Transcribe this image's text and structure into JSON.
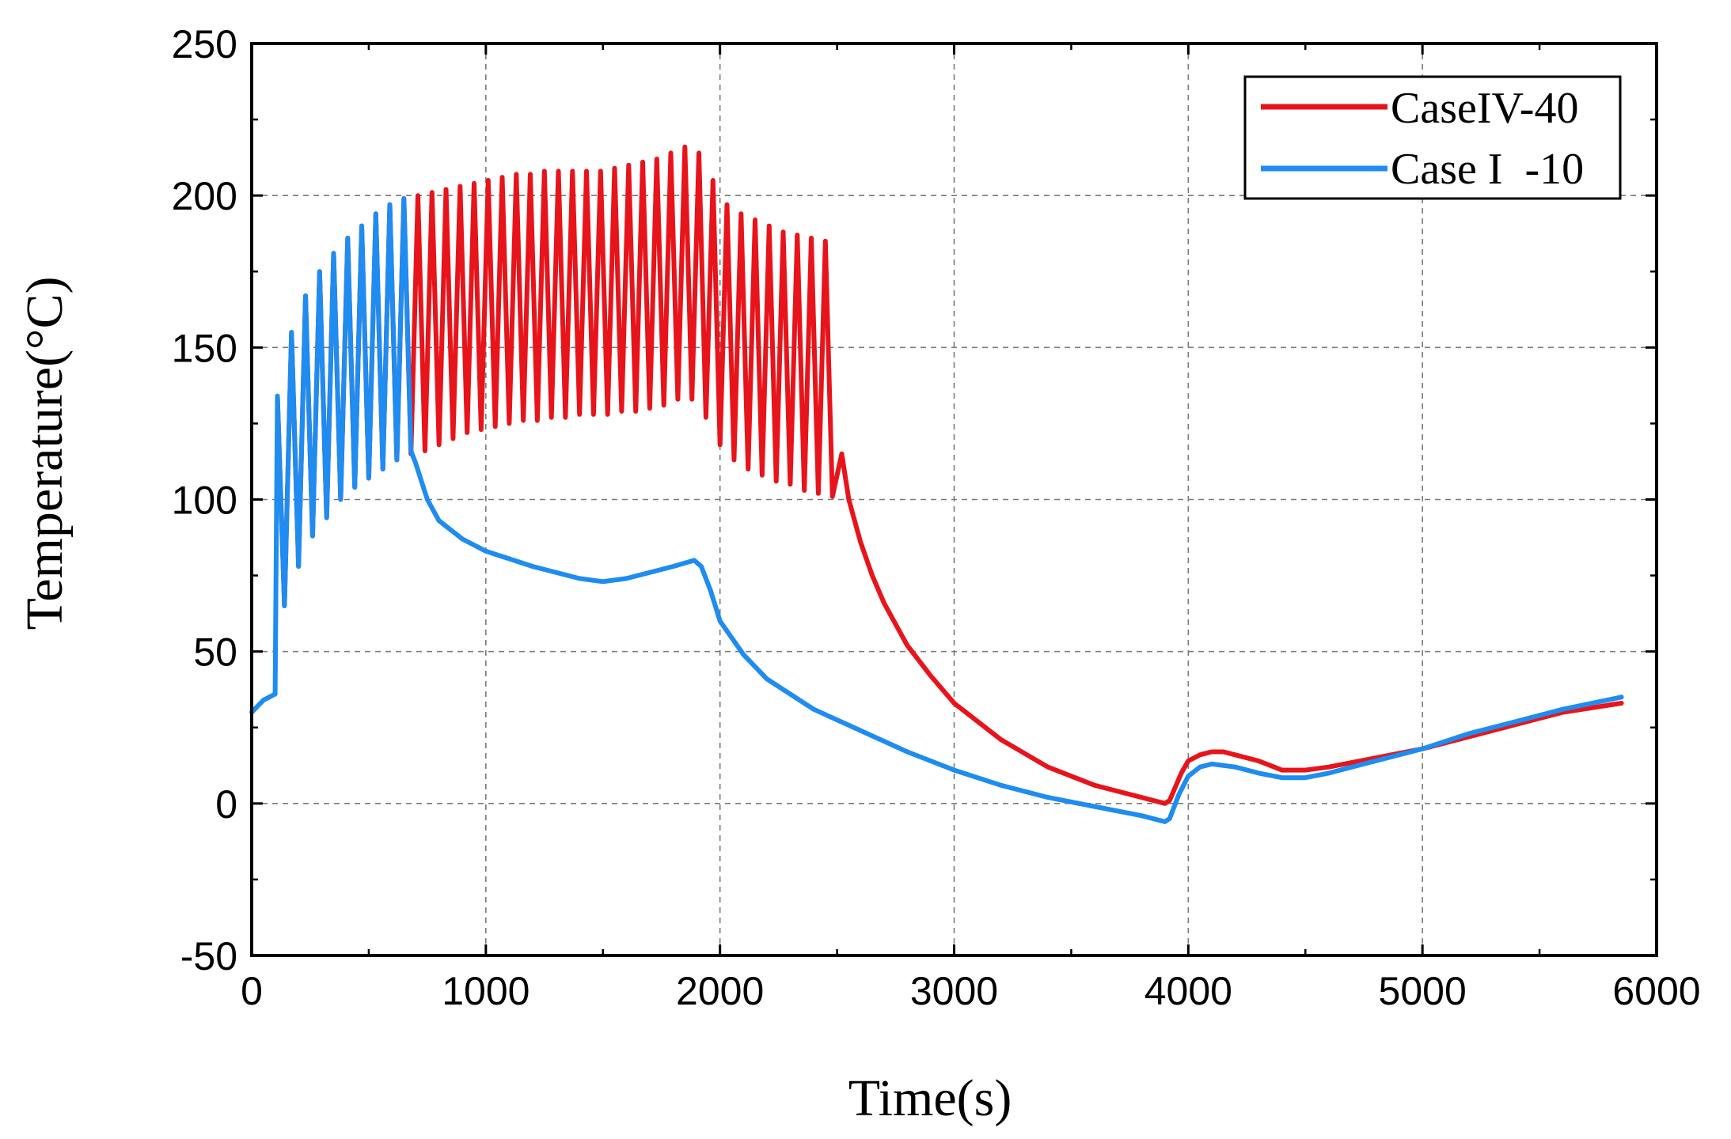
{
  "chart_data": {
    "type": "line",
    "xlabel": "Time(s)",
    "ylabel": "Temperature(°C)",
    "xlim": [
      0,
      6000
    ],
    "ylim": [
      -50,
      250
    ],
    "xticks": [
      "0",
      "1000",
      "2000",
      "3000",
      "4000",
      "5000",
      "6000"
    ],
    "yticks": [
      "-50",
      "0",
      "50",
      "100",
      "150",
      "200",
      "250"
    ],
    "grid": true,
    "legend_position": "top-right",
    "series": [
      {
        "name": "CaseIV-40",
        "color": "#e8141b",
        "peaks": [
          [
            110,
            134
          ],
          [
            170,
            155
          ],
          [
            230,
            167
          ],
          [
            290,
            175
          ],
          [
            350,
            181
          ],
          [
            410,
            186
          ],
          [
            470,
            190
          ],
          [
            530,
            194
          ],
          [
            590,
            197
          ],
          [
            650,
            199
          ],
          [
            710,
            200
          ],
          [
            770,
            201
          ],
          [
            830,
            202
          ],
          [
            890,
            203
          ],
          [
            950,
            204
          ],
          [
            1010,
            205
          ],
          [
            1070,
            206
          ],
          [
            1130,
            207
          ],
          [
            1190,
            207
          ],
          [
            1250,
            208
          ],
          [
            1310,
            208
          ],
          [
            1370,
            208
          ],
          [
            1430,
            208
          ],
          [
            1490,
            208
          ],
          [
            1550,
            209
          ],
          [
            1610,
            210
          ],
          [
            1670,
            211
          ],
          [
            1730,
            212
          ],
          [
            1790,
            214
          ],
          [
            1850,
            216
          ],
          [
            1910,
            214
          ],
          [
            1970,
            205
          ],
          [
            2030,
            197
          ],
          [
            2090,
            194
          ],
          [
            2150,
            192
          ],
          [
            2210,
            190
          ],
          [
            2270,
            188
          ],
          [
            2330,
            187
          ],
          [
            2390,
            186
          ],
          [
            2450,
            185
          ]
        ],
        "troughs": [
          [
            140,
            65
          ],
          [
            200,
            78
          ],
          [
            260,
            88
          ],
          [
            320,
            94
          ],
          [
            380,
            100
          ],
          [
            440,
            104
          ],
          [
            500,
            107
          ],
          [
            560,
            110
          ],
          [
            620,
            113
          ],
          [
            680,
            115
          ],
          [
            740,
            116
          ],
          [
            800,
            118
          ],
          [
            860,
            120
          ],
          [
            920,
            122
          ],
          [
            980,
            123
          ],
          [
            1040,
            124
          ],
          [
            1100,
            125
          ],
          [
            1160,
            126
          ],
          [
            1220,
            126
          ],
          [
            1280,
            127
          ],
          [
            1340,
            127
          ],
          [
            1400,
            128
          ],
          [
            1460,
            128
          ],
          [
            1520,
            128
          ],
          [
            1580,
            129
          ],
          [
            1640,
            129
          ],
          [
            1700,
            130
          ],
          [
            1760,
            131
          ],
          [
            1820,
            133
          ],
          [
            1880,
            133
          ],
          [
            1940,
            127
          ],
          [
            2000,
            118
          ],
          [
            2060,
            113
          ],
          [
            2120,
            110
          ],
          [
            2180,
            108
          ],
          [
            2240,
            106
          ],
          [
            2300,
            105
          ],
          [
            2360,
            103
          ],
          [
            2420,
            102
          ],
          [
            2480,
            101
          ]
        ],
        "tail": [
          [
            2480,
            101
          ],
          [
            2520,
            115
          ],
          [
            2550,
            100
          ],
          [
            2600,
            86
          ],
          [
            2650,
            75
          ],
          [
            2700,
            66
          ],
          [
            2800,
            52
          ],
          [
            2900,
            42
          ],
          [
            3000,
            33
          ],
          [
            3200,
            21
          ],
          [
            3400,
            12
          ],
          [
            3600,
            6
          ],
          [
            3800,
            2
          ],
          [
            3900,
            0
          ],
          [
            3920,
            1
          ],
          [
            3970,
            10
          ],
          [
            4000,
            14
          ],
          [
            4050,
            16
          ],
          [
            4100,
            17
          ],
          [
            4150,
            17
          ],
          [
            4200,
            16
          ],
          [
            4300,
            14
          ],
          [
            4400,
            11
          ],
          [
            4500,
            11
          ],
          [
            4600,
            12
          ],
          [
            4800,
            15
          ],
          [
            5000,
            18
          ],
          [
            5200,
            22
          ],
          [
            5400,
            26
          ],
          [
            5600,
            30
          ],
          [
            5850,
            33
          ]
        ]
      },
      {
        "name": "Case I  -10",
        "color": "#1e8cf0",
        "peaks": [
          [
            110,
            134
          ],
          [
            170,
            155
          ],
          [
            230,
            167
          ],
          [
            290,
            175
          ],
          [
            350,
            181
          ],
          [
            410,
            186
          ],
          [
            470,
            190
          ],
          [
            530,
            194
          ],
          [
            590,
            197
          ],
          [
            650,
            199
          ]
        ],
        "troughs": [
          [
            140,
            65
          ],
          [
            200,
            78
          ],
          [
            260,
            88
          ],
          [
            320,
            94
          ],
          [
            380,
            100
          ],
          [
            440,
            104
          ],
          [
            500,
            107
          ],
          [
            560,
            110
          ],
          [
            620,
            113
          ],
          [
            680,
            116
          ]
        ],
        "tail": [
          [
            680,
            116
          ],
          [
            700,
            112
          ],
          [
            750,
            100
          ],
          [
            800,
            93
          ],
          [
            900,
            87
          ],
          [
            1000,
            83
          ],
          [
            1200,
            78
          ],
          [
            1400,
            74
          ],
          [
            1500,
            73
          ],
          [
            1600,
            74
          ],
          [
            1800,
            78
          ],
          [
            1890,
            80
          ],
          [
            1920,
            78
          ],
          [
            1960,
            70
          ],
          [
            2000,
            60
          ],
          [
            2100,
            49
          ],
          [
            2200,
            41
          ],
          [
            2400,
            31
          ],
          [
            2600,
            24
          ],
          [
            2800,
            17
          ],
          [
            3000,
            11
          ],
          [
            3200,
            6
          ],
          [
            3400,
            2
          ],
          [
            3600,
            -1
          ],
          [
            3800,
            -4
          ],
          [
            3900,
            -6
          ],
          [
            3920,
            -5
          ],
          [
            3960,
            3
          ],
          [
            4000,
            9
          ],
          [
            4050,
            12
          ],
          [
            4100,
            13
          ],
          [
            4200,
            12
          ],
          [
            4300,
            10
          ],
          [
            4400,
            8.5
          ],
          [
            4500,
            8.5
          ],
          [
            4600,
            10
          ],
          [
            4800,
            14
          ],
          [
            5000,
            18
          ],
          [
            5200,
            23
          ],
          [
            5400,
            27
          ],
          [
            5600,
            31
          ],
          [
            5850,
            35
          ]
        ]
      }
    ],
    "initial_segment": [
      [
        0,
        30
      ],
      [
        50,
        34
      ],
      [
        100,
        36
      ],
      [
        110,
        134
      ]
    ]
  }
}
